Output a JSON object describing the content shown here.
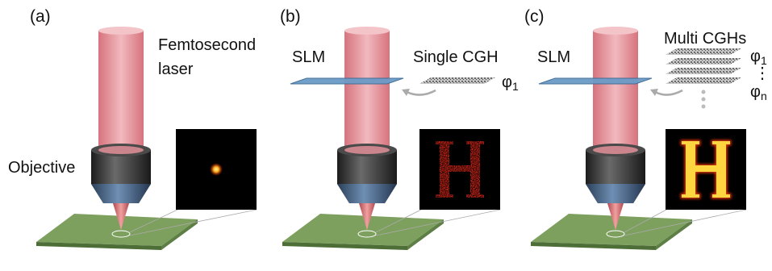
{
  "panels": [
    {
      "label": "(a)",
      "laser": [
        "Femtosecond",
        "laser"
      ],
      "objective": "Objective"
    },
    {
      "label": "(b)",
      "slm": "SLM",
      "hologram": "Single CGH",
      "phase": {
        "symbol": "φ",
        "subscript": "1"
      }
    },
    {
      "label": "(c)",
      "slm": "SLM",
      "hologram": "Multi CGHs",
      "phase_first": {
        "symbol": "φ",
        "subscript": "1"
      },
      "ellipsis": "⋮",
      "phase_last": {
        "symbol": "φ",
        "subscript": "n"
      }
    }
  ]
}
